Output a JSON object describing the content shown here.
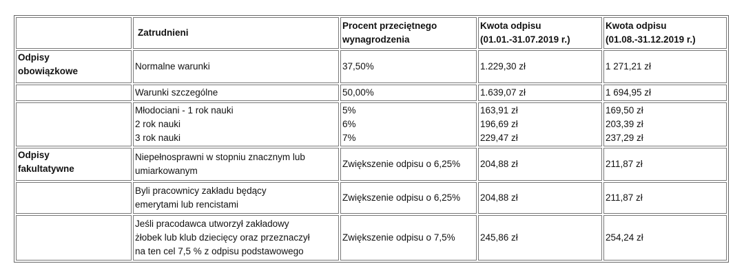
{
  "table": {
    "header": [
      [
        "Zatrudnieni"
      ],
      [
        "Procent przeciętnego",
        "wynagrodzenia"
      ],
      [
        "Kwota odpisu",
        "(01.01.-31.07.2019 r.)"
      ],
      [
        "Kwota odpisu",
        "(01.08.-31.12.2019 r.)"
      ]
    ],
    "rows": [
      {
        "group": [
          "Odpisy",
          "obowiązkowe"
        ],
        "cells": [
          [
            "Normalne warunki"
          ],
          [
            "37,50%"
          ],
          [
            "1.229,30 zł"
          ],
          [
            "1 271,21 zł"
          ]
        ]
      },
      {
        "cells": [
          [
            "Warunki szczególne"
          ],
          [
            "50,00%"
          ],
          [
            "1.639,07 zł"
          ],
          [
            "1 694,95 zł"
          ]
        ]
      },
      {
        "cells": [
          [
            "Młodociani - 1 rok nauki",
            "2 rok nauki",
            "3 rok nauki"
          ],
          [
            "5%",
            "6%",
            "7%"
          ],
          [
            "163,91 zł",
            "196,69 zł",
            "229,47 zł"
          ],
          [
            "169,50 zł",
            "203,39 zł",
            "237,29 zł"
          ]
        ]
      },
      {
        "group": [
          "Odpisy",
          "fakultatywne"
        ],
        "cells": [
          [
            "Niepełnosprawni w stopniu znacznym lub",
            "umiarkowanym"
          ],
          [
            "Zwiększenie odpisu o 6,25%"
          ],
          [
            "204,88 zł"
          ],
          [
            "211,87 zł"
          ]
        ]
      },
      {
        "cells": [
          [
            "Byli pracownicy zakładu będący",
            "emerytami lub rencistami"
          ],
          [
            "Zwiększenie odpisu o 6,25%"
          ],
          [
            "204,88 zł"
          ],
          [
            "211,87 zł"
          ]
        ]
      },
      {
        "cells": [
          [
            "Jeśli pracodawca utworzył zakładowy",
            "żłobek lub klub dziecięcy oraz przeznaczył",
            "na ten cel 7,5 % z odpisu podstawowego"
          ],
          [
            "Zwiększenie odpisu o 7,5%"
          ],
          [
            "245,86 zł"
          ],
          [
            "254,24 zł"
          ]
        ]
      }
    ]
  }
}
